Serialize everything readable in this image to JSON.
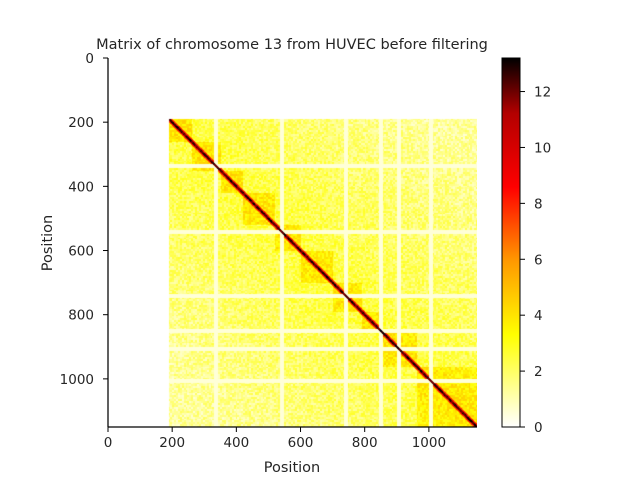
{
  "chart_data": {
    "type": "heatmap",
    "title": "Matrix of chromosome 13 from HUVEC before filtering",
    "xlabel": "Position",
    "ylabel": "Position",
    "xlim": [
      0,
      1150
    ],
    "ylim": [
      1150,
      0
    ],
    "xticks": [
      0,
      200,
      400,
      600,
      800,
      1000
    ],
    "yticks": [
      0,
      200,
      400,
      600,
      800,
      1000
    ],
    "data_start": 190,
    "n_bins": 1150,
    "colorbar": {
      "colormap": "hot_r",
      "range": [
        0,
        13.2
      ],
      "ticks": [
        0,
        2,
        4,
        6,
        8,
        10,
        12
      ]
    },
    "cell_value_estimates": {
      "diagonal": 12.5,
      "near_diagonal": 6,
      "domain_blocks": 4,
      "background": 2.5,
      "sparse_bands": 0.5
    },
    "domains": [
      [
        190,
        260
      ],
      [
        260,
        350
      ],
      [
        350,
        420
      ],
      [
        420,
        520
      ],
      [
        520,
        600
      ],
      [
        600,
        700
      ],
      [
        700,
        790
      ],
      [
        790,
        850
      ],
      [
        850,
        960
      ],
      [
        960,
        1150
      ]
    ],
    "sparse_bins": [
      335,
      540,
      740,
      848,
      905,
      1005
    ]
  },
  "colors": {
    "cmap_stops": [
      "#ffffff",
      "#ffff00",
      "#ff9900",
      "#ff0000",
      "#b30000",
      "#000000"
    ],
    "text": "#262626",
    "axis": "#000000"
  }
}
